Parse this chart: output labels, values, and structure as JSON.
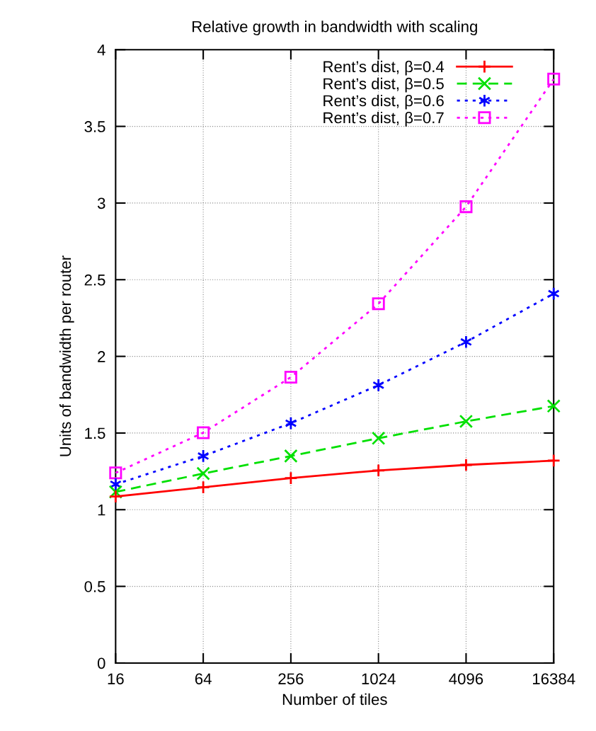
{
  "chart_data": {
    "type": "line",
    "title": "Relative growth in bandwidth with scaling",
    "xlabel": "Number of tiles",
    "ylabel": "Units of bandwidth per router",
    "x": [
      16,
      64,
      256,
      1024,
      4096,
      16384
    ],
    "log": "x",
    "xlim": [
      16,
      16384
    ],
    "xticks": [
      16,
      64,
      256,
      1024,
      4096,
      16384
    ],
    "ylim": [
      0,
      4
    ],
    "yticks": [
      0,
      0.5,
      1,
      1.5,
      2,
      2.5,
      3,
      3.5,
      4
    ],
    "grid": true,
    "legend": "top right",
    "series": [
      {
        "name": "Rent’s dist, β=0.4",
        "color": "#ff0000",
        "marker": "plus",
        "line_style": "solid",
        "values": [
          1.086,
          1.146,
          1.206,
          1.256,
          1.292,
          1.32
        ]
      },
      {
        "name": "Rent’s dist, β=0.5",
        "color": "#00e000",
        "marker": "cross",
        "line_style": "dashed",
        "values": [
          1.116,
          1.236,
          1.35,
          1.466,
          1.576,
          1.676
        ]
      },
      {
        "name": "Rent’s dist, β=0.6",
        "color": "#0000ff",
        "marker": "cross",
        "line_style": "dotted",
        "values": [
          1.166,
          1.35,
          1.564,
          1.812,
          2.094,
          2.409
        ]
      },
      {
        "name": "Rent’s dist, β=0.7",
        "color": "#ff00ff",
        "marker": "square",
        "line_style": "dotted",
        "values": [
          1.24,
          1.502,
          1.864,
          2.343,
          2.976,
          3.808
        ]
      }
    ]
  }
}
